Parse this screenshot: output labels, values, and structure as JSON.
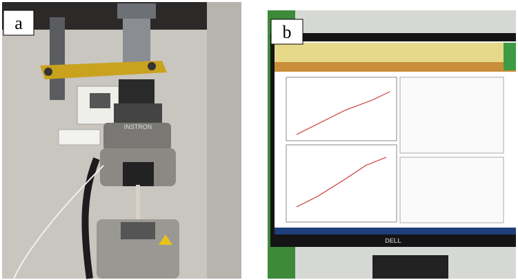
{
  "panels": [
    {
      "label": "a",
      "brand": "INSTRON"
    },
    {
      "label": "b",
      "brand": "DELL"
    }
  ]
}
